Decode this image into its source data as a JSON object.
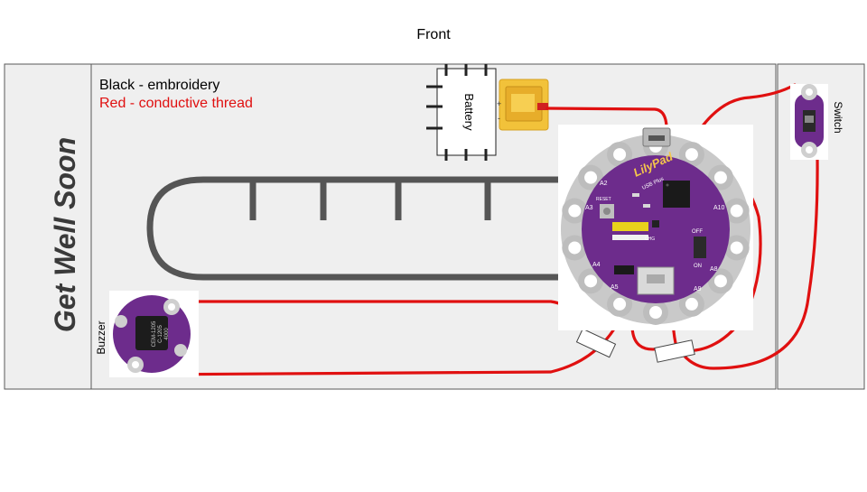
{
  "title": "Front",
  "legend": {
    "embroidery": "Black - embroidery",
    "thread": "Red - conductive thread"
  },
  "card_text": "Get Well Soon",
  "components": {
    "battery": "Battery",
    "switch": "Switch",
    "buzzer": "Buzzer"
  },
  "board": {
    "brand": "LilyPad",
    "model": "USB  Plus",
    "labels": [
      "A2",
      "A3",
      "A4",
      "A5",
      "A9",
      "A8",
      "A10",
      "OFF",
      "ON",
      "CHG",
      "RESET"
    ]
  },
  "buzzer_print": [
    "CEM-1205",
    "C-1205",
    "4000"
  ],
  "colors": {
    "thread": "#e01010",
    "embroidery": "#555555",
    "board": "#6d2c8c",
    "petal": "#c9c9c9",
    "panel": "#efefef"
  }
}
